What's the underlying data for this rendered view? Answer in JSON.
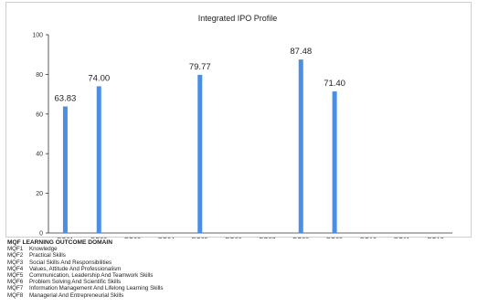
{
  "colors": {
    "bar": "#4a8fe3",
    "axis": "#333333",
    "grid": "#e6e6e6"
  },
  "chart_data": {
    "type": "bar",
    "title": "Integrated IPO Profile",
    "xlabel": "",
    "ylabel": "",
    "ylim": [
      0,
      100
    ],
    "yticks": [
      0,
      20,
      40,
      60,
      80,
      100
    ],
    "grid": false,
    "categories": [
      "PO01",
      "PO02",
      "PO03",
      "PO04",
      "PO05",
      "PO06",
      "PO07",
      "PO08",
      "PO09",
      "PO10",
      "PO11",
      "PO12"
    ],
    "values": [
      63.83,
      74.0,
      null,
      null,
      79.77,
      null,
      null,
      87.48,
      71.4,
      null,
      null,
      null
    ],
    "value_labels": [
      "63.83",
      "74.00",
      "",
      "",
      "79.77",
      "",
      "",
      "87.48",
      "71.40",
      "",
      "",
      ""
    ]
  },
  "legend": {
    "heading": "MQF LEARNING OUTCOME DOMAIN",
    "items": [
      {
        "code": "MQF1",
        "label": "Knowledge"
      },
      {
        "code": "MQF2",
        "label": "Practical Skills"
      },
      {
        "code": "MQF3",
        "label": "Social Skills And Responsibilities"
      },
      {
        "code": "MQF4",
        "label": "Values, Attitude And Professionalism"
      },
      {
        "code": "MQF5",
        "label": "Communication, Leadership And Teamwork Skills"
      },
      {
        "code": "MQF6",
        "label": "Problem Solving And Scientific Skills"
      },
      {
        "code": "MQF7",
        "label": "Information Management And Lifelong Learning Skills"
      },
      {
        "code": "MQF8",
        "label": "Managerial And Entrepreneurial Skills"
      }
    ]
  }
}
